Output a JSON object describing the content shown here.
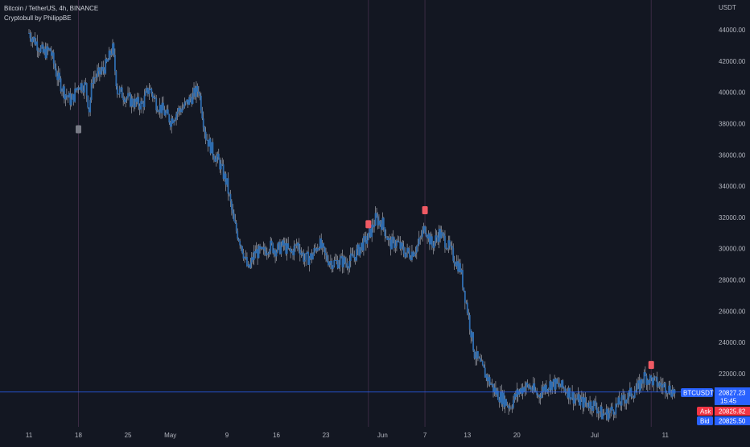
{
  "legend": {
    "title": "Bitcoin / TetherUS, 4h, BINANCE",
    "indicator": "Cryptobull by PhilippBE"
  },
  "currency_label": "USDT",
  "price_tag": {
    "symbol": "BTCUSDT",
    "price": "20827.23",
    "countdown": "15:45",
    "ask_label": "Ask",
    "ask": "20825.82",
    "bid_label": "Bid",
    "bid": "20825.50"
  },
  "colors": {
    "background": "#131722",
    "candle": "#2f6db0",
    "wick": "#d1d4dc",
    "last_price_line": "#2962ff",
    "tag_blue": "#2962ff",
    "tag_red": "#f23645",
    "marker_red": "#f05a64",
    "marker_gray": "#787b86",
    "vline": "#3a2a44"
  },
  "chart_data": {
    "type": "candlestick",
    "symbol": "BTCUSDT",
    "interval": "4h",
    "exchange": "BINANCE",
    "ylim": [
      20000,
      45000
    ],
    "y_ticks": [
      22000,
      24000,
      26000,
      28000,
      30000,
      32000,
      34000,
      36000,
      38000,
      40000,
      42000,
      44000
    ],
    "y_tick_labels": [
      "22000.00",
      "24000.00",
      "26000.00",
      "28000.00",
      "30000.00",
      "32000.00",
      "34000.00",
      "36000.00",
      "38000.00",
      "40000.00",
      "42000.00",
      "44000.00"
    ],
    "x_tick_labels": [
      "11",
      "18",
      "25",
      "May",
      "9",
      "16",
      "23",
      "Jun",
      "7",
      "13",
      "20",
      "Jul",
      "11"
    ],
    "x_tick_days": [
      0,
      7,
      14,
      20,
      28,
      35,
      42,
      50,
      56,
      62,
      69,
      80,
      90
    ],
    "days_visible": [
      0,
      96
    ],
    "last_price": 20827.23,
    "path_points": [
      [
        0,
        43800
      ],
      [
        1,
        43200
      ],
      [
        2,
        42500
      ],
      [
        3,
        42700
      ],
      [
        4,
        41000
      ],
      [
        5,
        40000
      ],
      [
        6,
        39400
      ],
      [
        7,
        40500
      ],
      [
        8,
        40400
      ],
      [
        8.5,
        38900
      ],
      [
        9,
        40900
      ],
      [
        10,
        41200
      ],
      [
        11,
        41800
      ],
      [
        11.8,
        42900
      ],
      [
        12.5,
        40100
      ],
      [
        13.5,
        39800
      ],
      [
        14.5,
        39400
      ],
      [
        16,
        39200
      ],
      [
        17,
        40300
      ],
      [
        18,
        39300
      ],
      [
        19,
        38800
      ],
      [
        20,
        38200
      ],
      [
        21,
        38800
      ],
      [
        22,
        39100
      ],
      [
        23,
        39700
      ],
      [
        24,
        40200
      ],
      [
        25,
        37200
      ],
      [
        26,
        36200
      ],
      [
        27,
        35400
      ],
      [
        28,
        34100
      ],
      [
        29,
        31600
      ],
      [
        30,
        30300
      ],
      [
        31,
        28600
      ],
      [
        32,
        29800
      ],
      [
        33,
        29700
      ],
      [
        34,
        30200
      ],
      [
        35,
        29900
      ],
      [
        36,
        30200
      ],
      [
        37,
        29700
      ],
      [
        38,
        30300
      ],
      [
        39,
        29300
      ],
      [
        40,
        29500
      ],
      [
        41,
        30400
      ],
      [
        42,
        29400
      ],
      [
        43,
        29100
      ],
      [
        44,
        29200
      ],
      [
        45,
        29100
      ],
      [
        46,
        29500
      ],
      [
        47,
        30200
      ],
      [
        48,
        30700
      ],
      [
        49,
        31900
      ],
      [
        50,
        31600
      ],
      [
        51,
        30300
      ],
      [
        52,
        30400
      ],
      [
        53,
        29800
      ],
      [
        54,
        29700
      ],
      [
        55,
        30200
      ],
      [
        56,
        31400
      ],
      [
        57,
        30200
      ],
      [
        58,
        31000
      ],
      [
        59,
        30400
      ],
      [
        60,
        29500
      ],
      [
        61,
        28700
      ],
      [
        62,
        26100
      ],
      [
        63,
        23300
      ],
      [
        64,
        22400
      ],
      [
        65,
        21600
      ],
      [
        66,
        20800
      ],
      [
        67,
        20400
      ],
      [
        68,
        19900
      ],
      [
        69,
        20700
      ],
      [
        70,
        21200
      ],
      [
        71,
        21100
      ],
      [
        72,
        20600
      ],
      [
        73,
        21200
      ],
      [
        74,
        21400
      ],
      [
        75,
        21200
      ],
      [
        76,
        21000
      ],
      [
        77,
        20500
      ],
      [
        78,
        20200
      ],
      [
        79,
        20100
      ],
      [
        80,
        20000
      ],
      [
        81,
        19400
      ],
      [
        82,
        19500
      ],
      [
        83,
        19900
      ],
      [
        84,
        20300
      ],
      [
        85,
        20700
      ],
      [
        86,
        21000
      ],
      [
        87,
        21800
      ],
      [
        88,
        21600
      ],
      [
        89,
        21300
      ],
      [
        90,
        21200
      ],
      [
        91,
        20900
      ],
      [
        91.5,
        20800
      ]
    ],
    "vertical_lines_days": [
      7,
      48,
      56,
      88
    ],
    "signals": [
      {
        "day": 7,
        "price": 38000,
        "side": "below",
        "color": "gray"
      },
      {
        "day": 48,
        "price": 31200,
        "side": "above",
        "color": "red"
      },
      {
        "day": 56,
        "price": 32100,
        "side": "above",
        "color": "red"
      },
      {
        "day": 88,
        "price": 22200,
        "side": "above",
        "color": "red"
      }
    ],
    "grid": false
  }
}
